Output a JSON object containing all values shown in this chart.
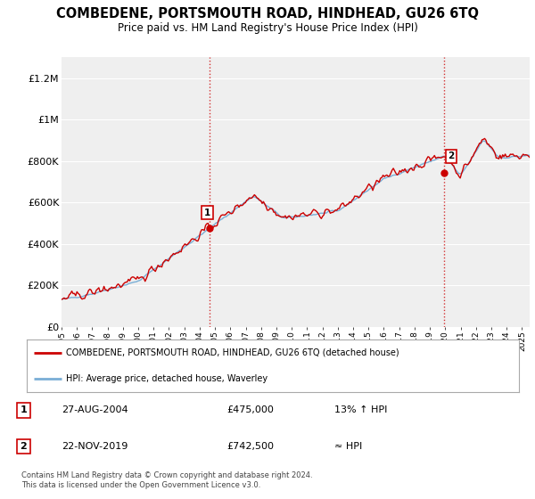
{
  "title": "COMBEDENE, PORTSMOUTH ROAD, HINDHEAD, GU26 6TQ",
  "subtitle": "Price paid vs. HM Land Registry's House Price Index (HPI)",
  "ylim": [
    0,
    1300000
  ],
  "yticks": [
    0,
    200000,
    400000,
    600000,
    800000,
    1000000,
    1200000
  ],
  "ytick_labels": [
    "£0",
    "£200K",
    "£400K",
    "£600K",
    "£800K",
    "£1M",
    "£1.2M"
  ],
  "red_color": "#cc0000",
  "blue_color": "#7aaed6",
  "sale1_x": 2004.65,
  "sale1_y": 475000,
  "sale1_label": "1",
  "sale2_x": 2019.9,
  "sale2_y": 742500,
  "sale2_label": "2",
  "vline_color": "#cc0000",
  "legend_red_label": "COMBEDENE, PORTSMOUTH ROAD, HINDHEAD, GU26 6TQ (detached house)",
  "legend_blue_label": "HPI: Average price, detached house, Waverley",
  "annotation1_date": "27-AUG-2004",
  "annotation1_price": "£475,000",
  "annotation1_hpi": "13% ↑ HPI",
  "annotation2_date": "22-NOV-2019",
  "annotation2_price": "£742,500",
  "annotation2_hpi": "≈ HPI",
  "footer": "Contains HM Land Registry data © Crown copyright and database right 2024.\nThis data is licensed under the Open Government Licence v3.0.",
  "xlim_start": 1995.0,
  "xlim_end": 2025.5,
  "background_color": "#ffffff",
  "plot_bg_color": "#efefef"
}
